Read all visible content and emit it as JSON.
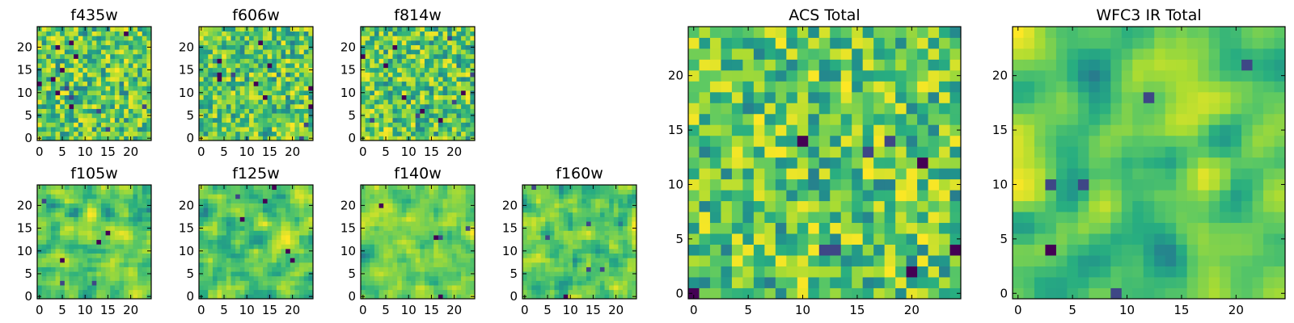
{
  "chart_data": [
    {
      "type": "heatmap",
      "title": "f435w",
      "grid_size": 25,
      "colormap": "viridis",
      "value_range": [
        0,
        1
      ],
      "xlim": [
        -0.5,
        24.5
      ],
      "ylim": [
        -0.5,
        24.5
      ],
      "xticks": [
        0,
        5,
        10,
        15,
        20
      ],
      "yticks": [
        0,
        5,
        10,
        15,
        20
      ],
      "xtick_labels": [
        "0",
        "5",
        "10",
        "15",
        "20"
      ],
      "ytick_labels": [
        "0",
        "5",
        "10",
        "15",
        "20"
      ],
      "seed": 11,
      "smoothing": 0,
      "dark_cells": 14
    },
    {
      "type": "heatmap",
      "title": "f606w",
      "grid_size": 25,
      "colormap": "viridis",
      "value_range": [
        0,
        1
      ],
      "xlim": [
        -0.5,
        24.5
      ],
      "ylim": [
        -0.5,
        24.5
      ],
      "xticks": [
        0,
        5,
        10,
        15,
        20
      ],
      "yticks": [
        0,
        5,
        10,
        15,
        20
      ],
      "xtick_labels": [
        "0",
        "5",
        "10",
        "15",
        "20"
      ],
      "ytick_labels": [
        "0",
        "5",
        "10",
        "15",
        "20"
      ],
      "seed": 23,
      "smoothing": 0,
      "dark_cells": 12
    },
    {
      "type": "heatmap",
      "title": "f814w",
      "grid_size": 25,
      "colormap": "viridis",
      "value_range": [
        0,
        1
      ],
      "xlim": [
        -0.5,
        24.5
      ],
      "ylim": [
        -0.5,
        24.5
      ],
      "xticks": [
        0,
        5,
        10,
        15,
        20
      ],
      "yticks": [
        0,
        5,
        10,
        15,
        20
      ],
      "xtick_labels": [
        "0",
        "5",
        "10",
        "15",
        "20"
      ],
      "ytick_labels": [
        "0",
        "5",
        "10",
        "15",
        "20"
      ],
      "seed": 37,
      "smoothing": 0,
      "dark_cells": 12
    },
    {
      "type": "heatmap",
      "title": "f105w",
      "grid_size": 25,
      "colormap": "viridis",
      "value_range": [
        0,
        1
      ],
      "xlim": [
        -0.5,
        24.5
      ],
      "ylim": [
        -0.5,
        24.5
      ],
      "xticks": [
        0,
        5,
        10,
        15,
        20
      ],
      "yticks": [
        0,
        5,
        10,
        15,
        20
      ],
      "xtick_labels": [
        "0",
        "5",
        "10",
        "15",
        "20"
      ],
      "ytick_labels": [
        "0",
        "5",
        "10",
        "15",
        "20"
      ],
      "seed": 41,
      "smoothing": 1,
      "dark_cells": 6
    },
    {
      "type": "heatmap",
      "title": "f125w",
      "grid_size": 25,
      "colormap": "viridis",
      "value_range": [
        0,
        1
      ],
      "xlim": [
        -0.5,
        24.5
      ],
      "ylim": [
        -0.5,
        24.5
      ],
      "xticks": [
        0,
        5,
        10,
        15,
        20
      ],
      "yticks": [
        0,
        5,
        10,
        15,
        20
      ],
      "xtick_labels": [
        "0",
        "5",
        "10",
        "15",
        "20"
      ],
      "ytick_labels": [
        "0",
        "5",
        "10",
        "15",
        "20"
      ],
      "seed": 53,
      "smoothing": 1,
      "dark_cells": 6
    },
    {
      "type": "heatmap",
      "title": "f140w",
      "grid_size": 25,
      "colormap": "viridis",
      "value_range": [
        0,
        1
      ],
      "xlim": [
        -0.5,
        24.5
      ],
      "ylim": [
        -0.5,
        24.5
      ],
      "xticks": [
        0,
        5,
        10,
        15,
        20
      ],
      "yticks": [
        0,
        5,
        10,
        15,
        20
      ],
      "xtick_labels": [
        "0",
        "5",
        "10",
        "15",
        "20"
      ],
      "ytick_labels": [
        "0",
        "5",
        "10",
        "15",
        "20"
      ],
      "seed": 67,
      "smoothing": 1,
      "dark_cells": 5
    },
    {
      "type": "heatmap",
      "title": "f160w",
      "grid_size": 25,
      "colormap": "viridis",
      "value_range": [
        0,
        1
      ],
      "xlim": [
        -0.5,
        24.5
      ],
      "ylim": [
        -0.5,
        24.5
      ],
      "xticks": [
        0,
        5,
        10,
        15,
        20
      ],
      "yticks": [
        0,
        5,
        10,
        15,
        20
      ],
      "xtick_labels": [
        "0",
        "5",
        "10",
        "15",
        "20"
      ],
      "ytick_labels": [
        "0",
        "5",
        "10",
        "15",
        "20"
      ],
      "seed": 79,
      "smoothing": 1,
      "dark_cells": 6
    },
    {
      "type": "heatmap",
      "title": "ACS Total",
      "grid_size": 25,
      "colormap": "viridis",
      "value_range": [
        0,
        1
      ],
      "xlim": [
        -0.5,
        24.5
      ],
      "ylim": [
        -0.5,
        24.5
      ],
      "xticks": [
        0,
        5,
        10,
        15,
        20
      ],
      "yticks": [
        0,
        5,
        10,
        15,
        20
      ],
      "xtick_labels": [
        "0",
        "5",
        "10",
        "15",
        "20"
      ],
      "ytick_labels": [
        "0",
        "5",
        "10",
        "15",
        "20"
      ],
      "seed": 83,
      "smoothing": 0,
      "dark_cells": 9
    },
    {
      "type": "heatmap",
      "title": "WFC3 IR Total",
      "grid_size": 25,
      "colormap": "viridis",
      "value_range": [
        0,
        1
      ],
      "xlim": [
        -0.5,
        24.5
      ],
      "ylim": [
        -0.5,
        24.5
      ],
      "xticks": [
        0,
        5,
        10,
        15,
        20
      ],
      "yticks": [
        0,
        5,
        10,
        15,
        20
      ],
      "xtick_labels": [
        "0",
        "5",
        "10",
        "15",
        "20"
      ],
      "ytick_labels": [
        "0",
        "5",
        "10",
        "15",
        "20"
      ],
      "seed": 97,
      "smoothing": 2,
      "dark_cells": 6
    }
  ]
}
